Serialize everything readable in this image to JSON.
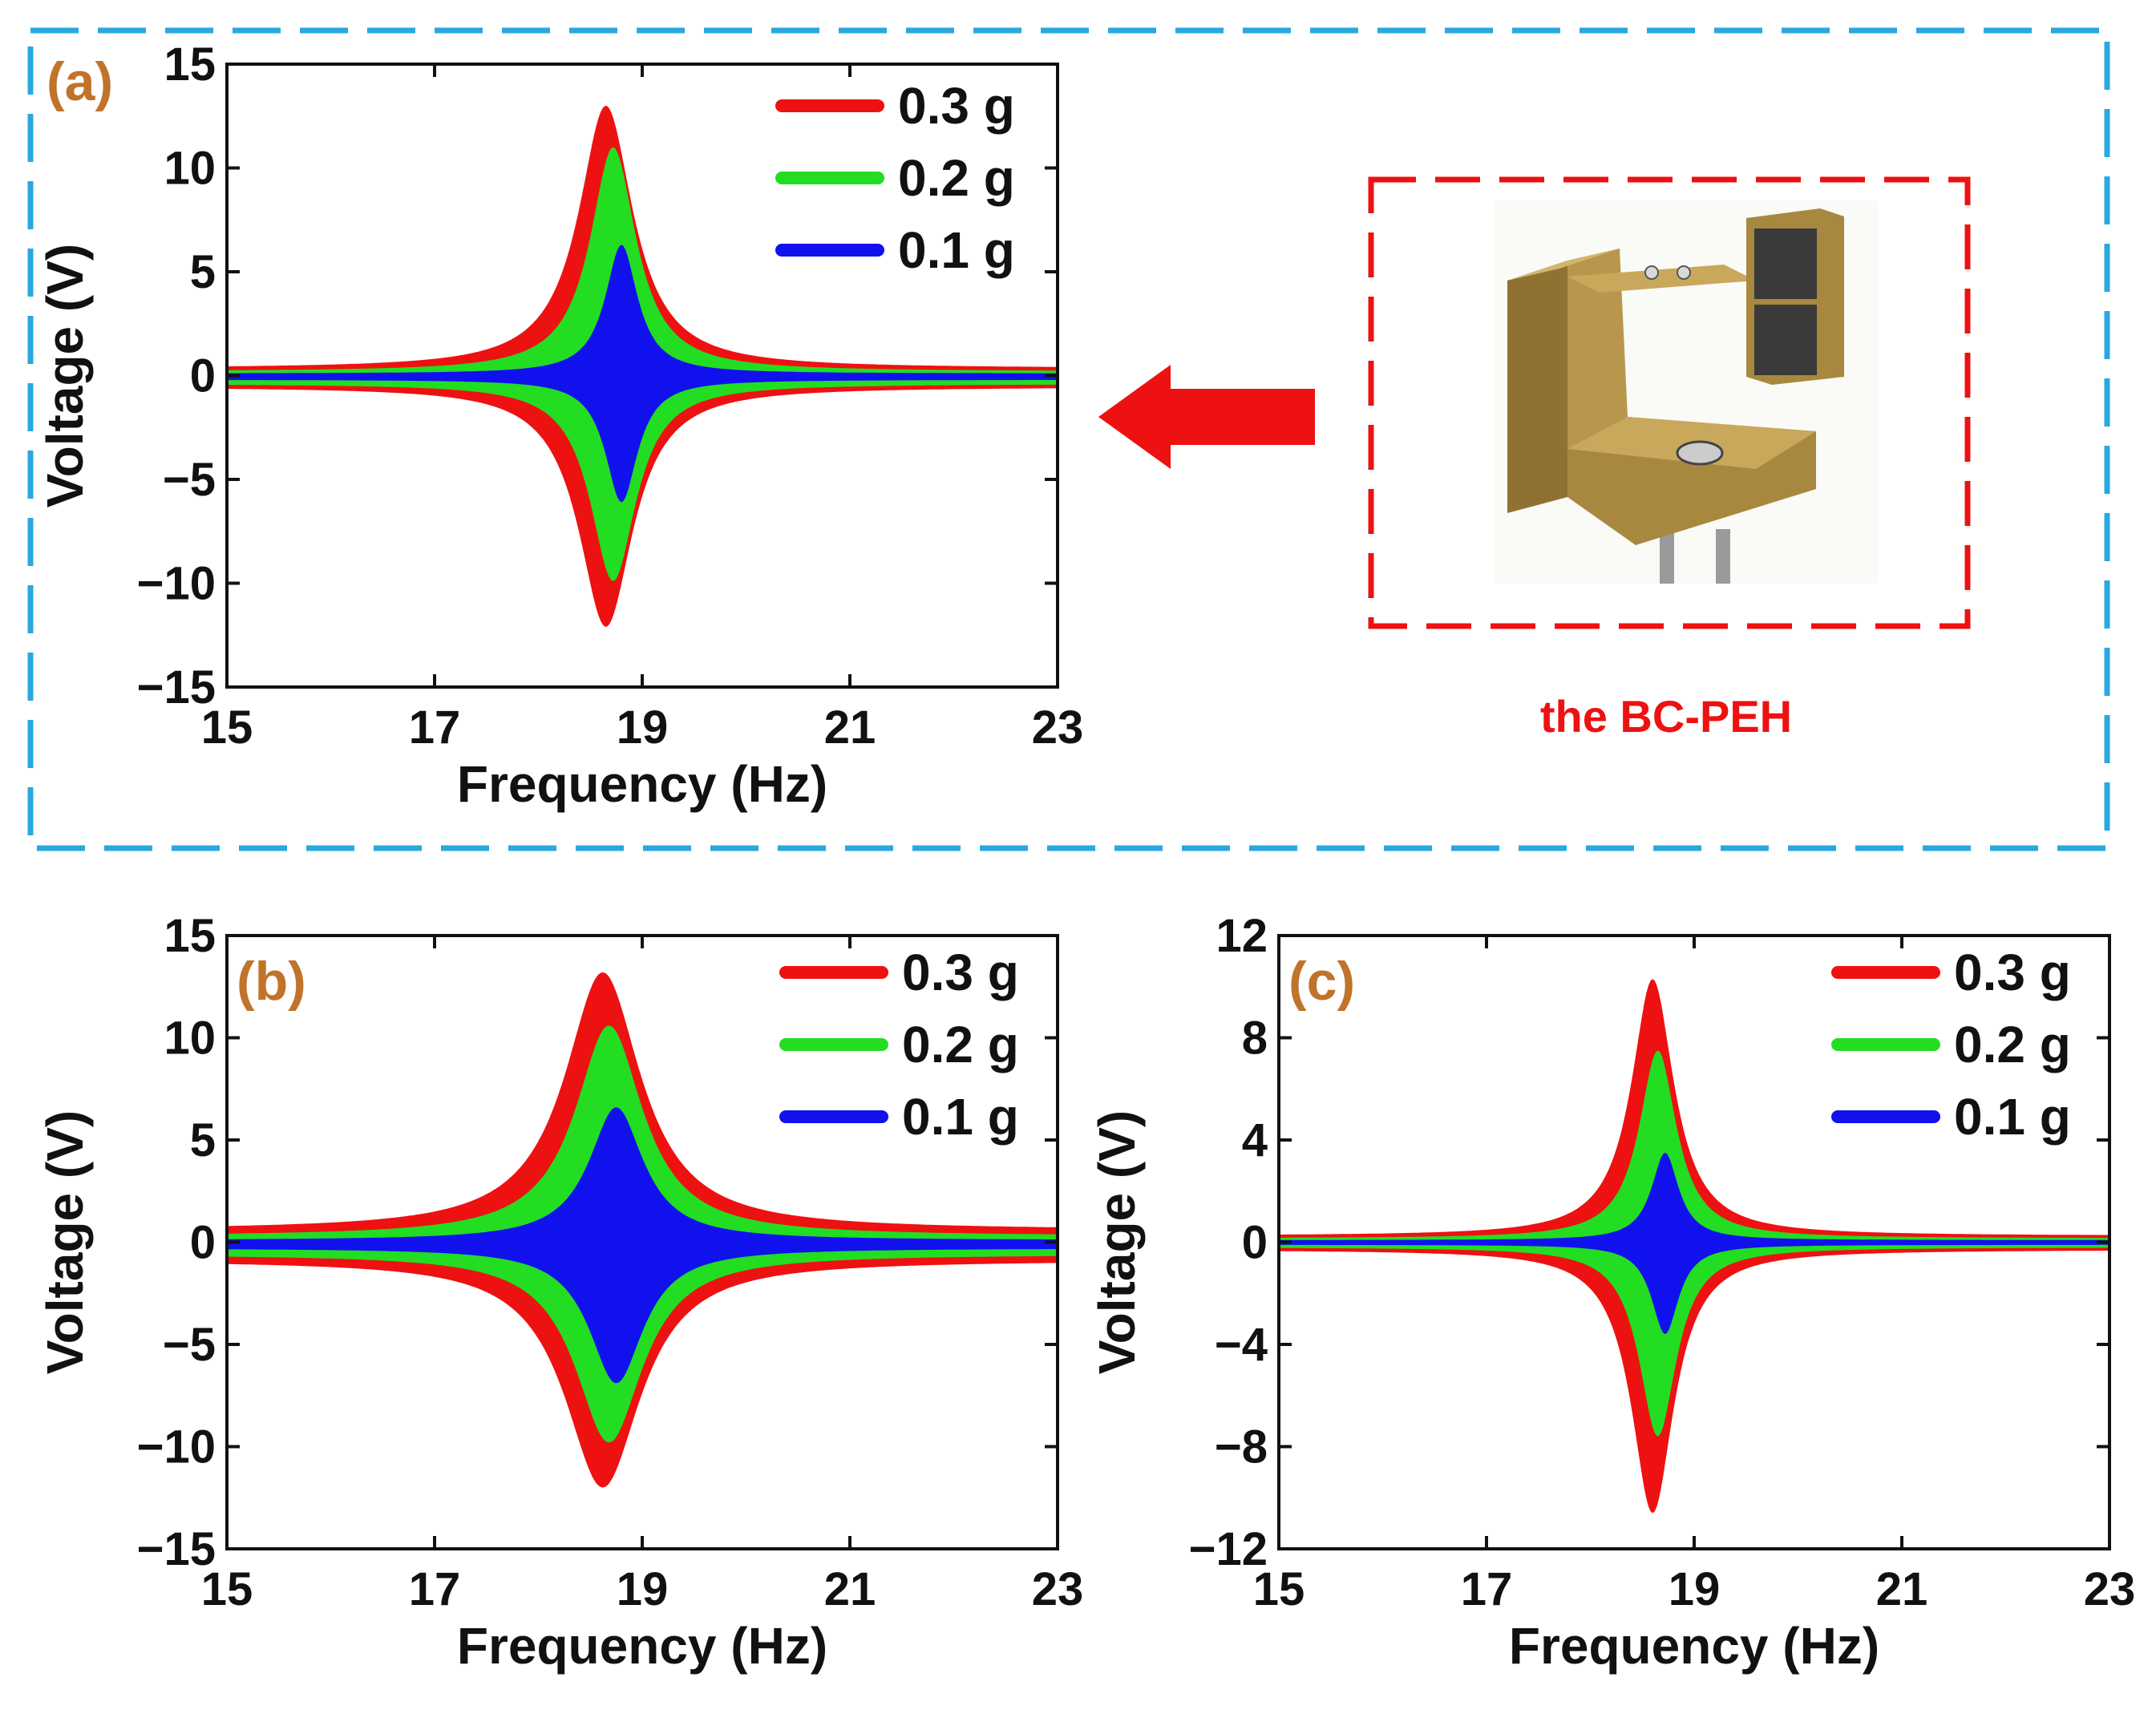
{
  "photo": {
    "caption": "the BC-PEH",
    "frame_color": "#ee1111",
    "arrow_color": "#ee1111"
  },
  "panel_a_frame_color": "#29a8e0",
  "chart_data": [
    {
      "panel": "(a)",
      "type": "area",
      "title": "",
      "xlabel": "Frequency (Hz)",
      "ylabel": "Voltage (V)",
      "xlim": [
        15,
        23
      ],
      "ylim": [
        -15,
        15
      ],
      "xticks": [
        15,
        17,
        19,
        21,
        23
      ],
      "xtick_labels": [
        "15",
        "17",
        "19",
        "21",
        "23"
      ],
      "yticks": [
        15,
        10,
        5,
        0,
        -5,
        -10,
        -15
      ],
      "ytick_labels": [
        "15",
        "10",
        "5",
        "0",
        "−5",
        "−10",
        "−15"
      ],
      "legend_position": "top-right",
      "series": [
        {
          "name": "0.3 g",
          "color": "#ee1111",
          "peak_frequency": 18.65,
          "upper_peak": 13.0,
          "lower_peak": -12.1,
          "upper_baseline": 0.35,
          "lower_baseline": -0.55,
          "width": 0.32
        },
        {
          "name": "0.2 g",
          "color": "#22dd22",
          "peak_frequency": 18.72,
          "upper_peak": 11.0,
          "lower_peak": -9.9,
          "upper_baseline": 0.2,
          "lower_baseline": -0.4,
          "width": 0.27
        },
        {
          "name": "0.1 g",
          "color": "#1111ee",
          "peak_frequency": 18.8,
          "upper_peak": 6.3,
          "lower_peak": -6.1,
          "upper_baseline": 0.1,
          "lower_baseline": -0.2,
          "width": 0.19
        }
      ]
    },
    {
      "panel": "(b)",
      "type": "area",
      "title": "",
      "xlabel": "Frequency (Hz)",
      "ylabel": "Voltage (V)",
      "xlim": [
        15,
        23
      ],
      "ylim": [
        -15,
        15
      ],
      "xticks": [
        15,
        17,
        19,
        21,
        23
      ],
      "xtick_labels": [
        "15",
        "17",
        "19",
        "21",
        "23"
      ],
      "yticks": [
        15,
        10,
        5,
        0,
        -5,
        -10,
        -15
      ],
      "ytick_labels": [
        "15",
        "10",
        "5",
        "0",
        "−5",
        "−10",
        "−15"
      ],
      "legend_position": "top-right",
      "series": [
        {
          "name": "0.3 g",
          "color": "#ee1111",
          "peak_frequency": 18.62,
          "upper_peak": 13.2,
          "lower_peak": -12.0,
          "upper_baseline": 0.6,
          "lower_baseline": -0.9,
          "width": 0.45
        },
        {
          "name": "0.2 g",
          "color": "#22dd22",
          "peak_frequency": 18.68,
          "upper_peak": 10.6,
          "lower_peak": -9.8,
          "upper_baseline": 0.3,
          "lower_baseline": -0.6,
          "width": 0.4
        },
        {
          "name": "0.1 g",
          "color": "#1111ee",
          "peak_frequency": 18.75,
          "upper_peak": 6.6,
          "lower_peak": -6.9,
          "upper_baseline": 0.1,
          "lower_baseline": -0.3,
          "width": 0.32
        }
      ]
    },
    {
      "panel": "(c)",
      "type": "area",
      "title": "",
      "xlabel": "Frequency (Hz)",
      "ylabel": "Voltage (V)",
      "xlim": [
        15,
        23
      ],
      "ylim": [
        -12,
        12
      ],
      "xticks": [
        15,
        17,
        19,
        21,
        23
      ],
      "xtick_labels": [
        "15",
        "17",
        "19",
        "21",
        "23"
      ],
      "yticks": [
        12,
        8,
        4,
        0,
        -4,
        -8,
        -12
      ],
      "ytick_labels": [
        "12",
        "8",
        "4",
        "0",
        "−4",
        "−8",
        "−12"
      ],
      "legend_position": "top-right",
      "series": [
        {
          "name": "0.3 g",
          "color": "#ee1111",
          "peak_frequency": 18.6,
          "upper_peak": 10.3,
          "lower_peak": -10.6,
          "upper_baseline": 0.25,
          "lower_baseline": -0.3,
          "width": 0.25
        },
        {
          "name": "0.2 g",
          "color": "#22dd22",
          "peak_frequency": 18.65,
          "upper_peak": 7.5,
          "lower_peak": -7.6,
          "upper_baseline": 0.15,
          "lower_baseline": -0.2,
          "width": 0.22
        },
        {
          "name": "0.1 g",
          "color": "#1111ee",
          "peak_frequency": 18.72,
          "upper_peak": 3.5,
          "lower_peak": -3.6,
          "upper_baseline": 0.08,
          "lower_baseline": -0.1,
          "width": 0.16
        }
      ]
    }
  ]
}
